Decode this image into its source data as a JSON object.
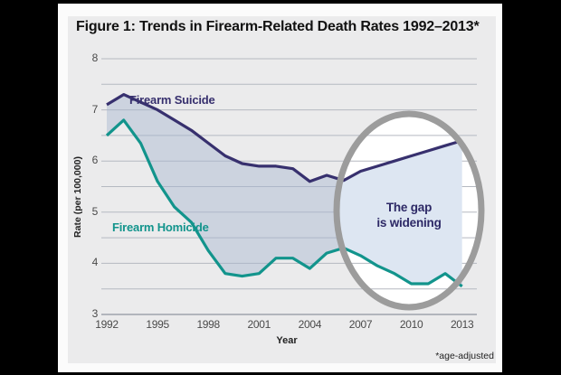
{
  "figure": {
    "title": "Figure 1: Trends in Firearm-Related Death Rates 1992–2013*",
    "footnote": "*age-adjusted"
  },
  "chart_data": {
    "type": "line",
    "title": "Figure 1: Trends in Firearm-Related Death Rates 1992–2013*",
    "xlabel": "Year",
    "ylabel": "Rate (per 100,000)",
    "ylim": [
      3,
      8
    ],
    "grid": true,
    "legend_position": "inline-labels",
    "x_ticks": [
      1992,
      1995,
      1998,
      2001,
      2004,
      2007,
      2010,
      2013
    ],
    "y_ticks": [
      3,
      4,
      5,
      6,
      7,
      8
    ],
    "y_minor_ticks": [
      3.5,
      4.5,
      5.5,
      6.5,
      7.5
    ],
    "x": [
      1992,
      1993,
      1994,
      1995,
      1996,
      1997,
      1998,
      1999,
      2000,
      2001,
      2002,
      2003,
      2004,
      2005,
      2006,
      2007,
      2008,
      2009,
      2010,
      2011,
      2012,
      2013
    ],
    "series": [
      {
        "name": "Firearm Suicide",
        "color": "#37306e",
        "values": [
          7.1,
          7.3,
          7.15,
          7.0,
          6.8,
          6.6,
          6.35,
          6.1,
          5.95,
          5.9,
          5.9,
          5.85,
          5.6,
          5.72,
          5.62,
          5.8,
          5.9,
          6.0,
          6.1,
          6.2,
          6.3,
          6.4
        ]
      },
      {
        "name": "Firearm Homicide",
        "color": "#12948c",
        "values": [
          6.5,
          6.8,
          6.35,
          5.6,
          5.1,
          4.8,
          4.25,
          3.8,
          3.75,
          3.8,
          4.1,
          4.1,
          3.9,
          4.2,
          4.3,
          4.15,
          3.95,
          3.8,
          3.6,
          3.6,
          3.8,
          3.55
        ]
      }
    ],
    "fill_between_series": true,
    "annotation": {
      "line1": "The gap",
      "line2": "is widening",
      "highlight_circle_year_range": [
        2006,
        2013
      ]
    }
  },
  "colors": {
    "background": "#000000",
    "card": "#fbfbfb",
    "panel": "#ebebec",
    "gridline": "#b5b9c1",
    "axis_line": "#9fa3ab",
    "fill_outer": "rgba(166,182,208,0.45)",
    "fill_inner": "#dde6f2",
    "suicide_line": "#37306e",
    "homicide_line": "#12948c",
    "ring": "#9c9c9c",
    "annotation_text": "#2d2966",
    "tick_text": "#4a4a4a",
    "title_text": "#121212"
  }
}
